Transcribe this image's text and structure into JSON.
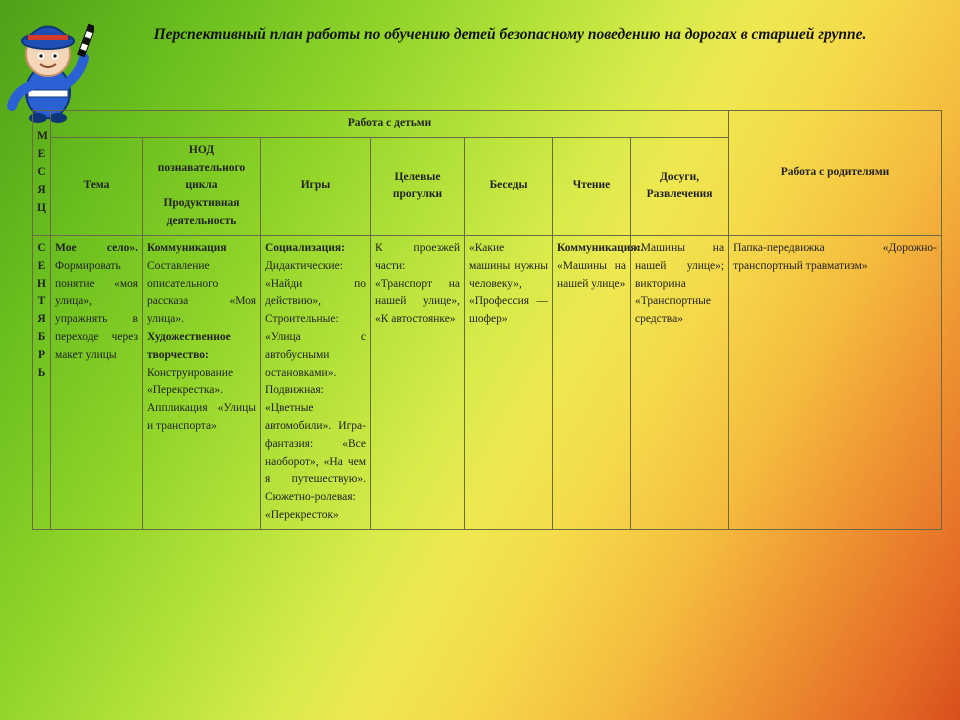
{
  "title": "Перспективный план работы по обучению детей безопасному поведению на   дорогах в   старшей группе.",
  "header": {
    "month": "М Е С Я Ц",
    "children_group": "Работа с детьми",
    "parents_group": "Работа с родителями",
    "tema": "Тема",
    "nod": "НОД познавательного цикла Продуктивная деятельность",
    "igry": "Игры",
    "progulki": "Целевые прогулки",
    "besedy": "Беседы",
    "chtenie": "Чтение",
    "dosugi": "Досуги, Развлечения"
  },
  "row": {
    "month": "С Е Н Т Я Б Р Ь",
    "tema_b": "Мое село».",
    "tema_rest": "Формировать понятие «моя улица», упражнять в переходе через макет улицы",
    "nod_b1": "Коммуникация",
    "nod_p1": "Составление описательного рассказа «Моя улица».",
    "nod_b2": "Художественное творчество:",
    "nod_p2": "Конструирование «Перекрестка». Аппликация «Улицы и транспорта»",
    "igry_b": " Социализация:",
    "igry_rest": "Дидактические: «Найди по действию», Строительные: «Улица с автобусными остановками». Подвижная: «Цветные автомобили». Игра-фантазия: «Все наоборот», «На чем я путешествую». Сюжетно-ролевая: «Перекресток»",
    "progulki": "К проезжей части: «Транспорт на нашей улице», «К автостоянке»",
    "besedy": "«Какие машины нужны человеку», «Профессия — шофер»",
    "chten_b": "Коммуникация:.",
    "chten_rest": "«Машины на нашей улице»",
    "dosugi": "«Машины на нашей улице»; викторина «Транспортные средства»",
    "parents": "Папка-передвижка «Дорожно-транспортный травматизм»"
  },
  "colors": {
    "border": "#6a6a45",
    "text": "#222222"
  },
  "mascot": {
    "hat": "#1e4fb5",
    "face": "#f6d6b8",
    "body": "#2a62d6",
    "baton_stripe1": "#111111",
    "baton_stripe2": "#ffffff"
  }
}
